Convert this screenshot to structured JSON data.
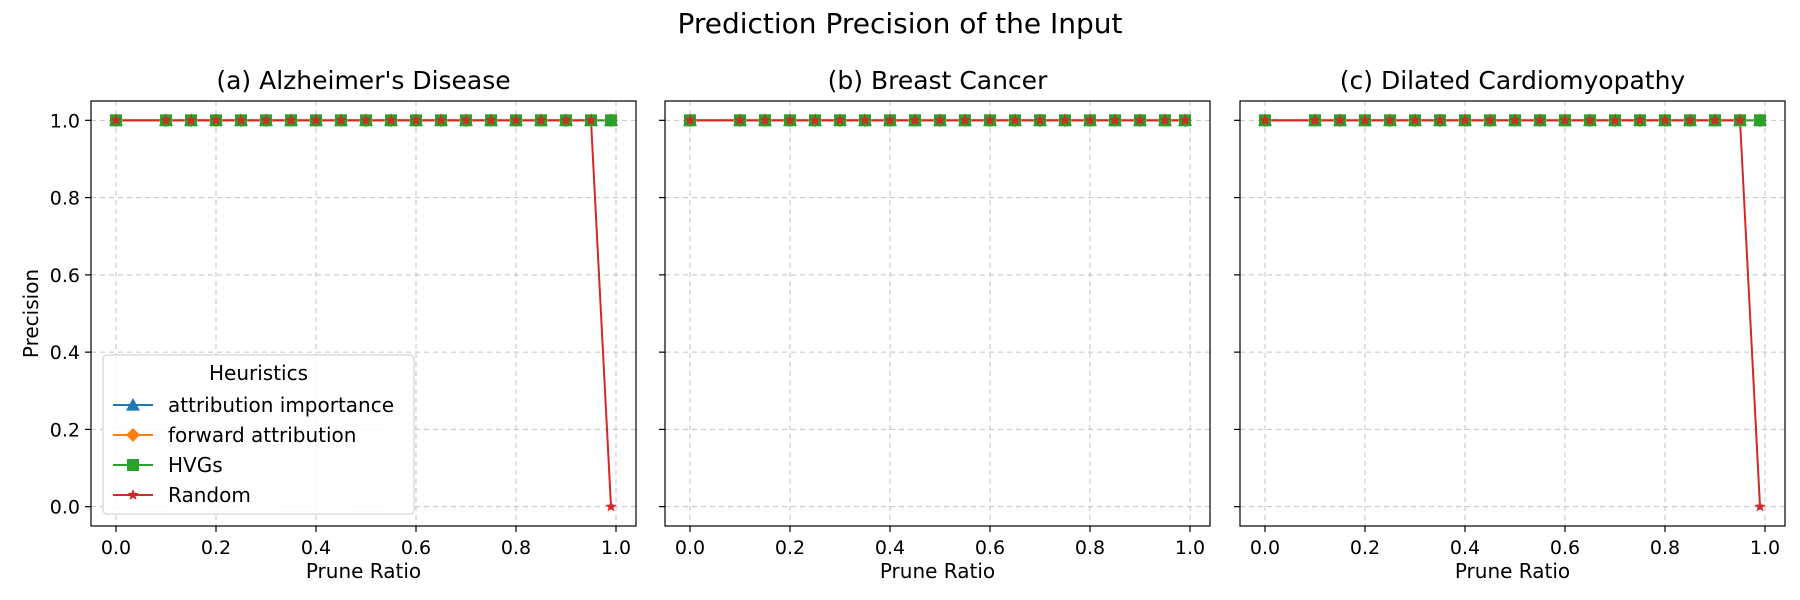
{
  "figure_title": "Prediction Precision of the Input",
  "colors": {
    "attribution importance": "#1f77b4",
    "forward attribution": "#ff7f0e",
    "HVGs": "#2ca02c",
    "Random": "#d62728"
  },
  "chart_data": [
    {
      "type": "line",
      "title": "(a) Alzheimer's Disease",
      "xlabel": "Prune Ratio",
      "ylabel": "Precision",
      "xlim": [
        -0.05,
        1.04
      ],
      "ylim": [
        -0.05,
        1.05
      ],
      "xticks": [
        "0.0",
        "0.2",
        "0.4",
        "0.6",
        "0.8",
        "1.0"
      ],
      "yticks": [
        "0.0",
        "0.2",
        "0.4",
        "0.6",
        "0.8",
        "1.0"
      ],
      "grid": true,
      "legend": {
        "title": "Heuristics",
        "placement": "lower-left"
      },
      "x": [
        0.0,
        0.1,
        0.15,
        0.2,
        0.25,
        0.3,
        0.35,
        0.4,
        0.45,
        0.5,
        0.55,
        0.6,
        0.65,
        0.7,
        0.75,
        0.8,
        0.85,
        0.9,
        0.95,
        0.99
      ],
      "series": [
        {
          "name": "attribution importance",
          "marker": "triangle",
          "values": [
            1,
            1,
            1,
            1,
            1,
            1,
            1,
            1,
            1,
            1,
            1,
            1,
            1,
            1,
            1,
            1,
            1,
            1,
            1,
            1
          ]
        },
        {
          "name": "forward attribution",
          "marker": "diamond",
          "values": [
            1,
            1,
            1,
            1,
            1,
            1,
            1,
            1,
            1,
            1,
            1,
            1,
            1,
            1,
            1,
            1,
            1,
            1,
            1,
            1
          ]
        },
        {
          "name": "HVGs",
          "marker": "square",
          "values": [
            1,
            1,
            1,
            1,
            1,
            1,
            1,
            1,
            1,
            1,
            1,
            1,
            1,
            1,
            1,
            1,
            1,
            1,
            1,
            1
          ]
        },
        {
          "name": "Random",
          "marker": "star",
          "values": [
            1,
            1,
            1,
            1,
            1,
            1,
            1,
            1,
            1,
            1,
            1,
            1,
            1,
            1,
            1,
            1,
            1,
            1,
            1,
            0
          ]
        }
      ]
    },
    {
      "type": "line",
      "title": "(b) Breast Cancer",
      "xlabel": "Prune Ratio",
      "ylabel": "",
      "xlim": [
        -0.05,
        1.04
      ],
      "ylim": [
        -0.05,
        1.05
      ],
      "xticks": [
        "0.0",
        "0.2",
        "0.4",
        "0.6",
        "0.8",
        "1.0"
      ],
      "yticks": [],
      "grid": true,
      "x": [
        0.0,
        0.1,
        0.15,
        0.2,
        0.25,
        0.3,
        0.35,
        0.4,
        0.45,
        0.5,
        0.55,
        0.6,
        0.65,
        0.7,
        0.75,
        0.8,
        0.85,
        0.9,
        0.95,
        0.99
      ],
      "series": [
        {
          "name": "attribution importance",
          "marker": "triangle",
          "values": [
            1,
            1,
            1,
            1,
            1,
            1,
            1,
            1,
            1,
            1,
            1,
            1,
            1,
            1,
            1,
            1,
            1,
            1,
            1,
            1
          ]
        },
        {
          "name": "forward attribution",
          "marker": "diamond",
          "values": [
            1,
            1,
            1,
            1,
            1,
            1,
            1,
            1,
            1,
            1,
            1,
            1,
            1,
            1,
            1,
            1,
            1,
            1,
            1,
            1
          ]
        },
        {
          "name": "HVGs",
          "marker": "square",
          "values": [
            1,
            1,
            1,
            1,
            1,
            1,
            1,
            1,
            1,
            1,
            1,
            1,
            1,
            1,
            1,
            1,
            1,
            1,
            1,
            1
          ]
        },
        {
          "name": "Random",
          "marker": "star",
          "values": [
            1,
            1,
            1,
            1,
            1,
            1,
            1,
            1,
            1,
            1,
            1,
            1,
            1,
            1,
            1,
            1,
            1,
            1,
            1,
            1
          ]
        }
      ]
    },
    {
      "type": "line",
      "title": "(c) Dilated Cardiomyopathy",
      "xlabel": "Prune Ratio",
      "ylabel": "",
      "xlim": [
        -0.05,
        1.04
      ],
      "ylim": [
        -0.05,
        1.05
      ],
      "xticks": [
        "0.0",
        "0.2",
        "0.4",
        "0.6",
        "0.8",
        "1.0"
      ],
      "yticks": [],
      "grid": true,
      "x": [
        0.0,
        0.1,
        0.15,
        0.2,
        0.25,
        0.3,
        0.35,
        0.4,
        0.45,
        0.5,
        0.55,
        0.6,
        0.65,
        0.7,
        0.75,
        0.8,
        0.85,
        0.9,
        0.95,
        0.99
      ],
      "series": [
        {
          "name": "attribution importance",
          "marker": "triangle",
          "values": [
            1,
            1,
            1,
            1,
            1,
            1,
            1,
            1,
            1,
            1,
            1,
            1,
            1,
            1,
            1,
            1,
            1,
            1,
            1,
            1
          ]
        },
        {
          "name": "forward attribution",
          "marker": "diamond",
          "values": [
            1,
            1,
            1,
            1,
            1,
            1,
            1,
            1,
            1,
            1,
            1,
            1,
            1,
            1,
            1,
            1,
            1,
            1,
            1,
            1
          ]
        },
        {
          "name": "HVGs",
          "marker": "square",
          "values": [
            1,
            1,
            1,
            1,
            1,
            1,
            1,
            1,
            1,
            1,
            1,
            1,
            1,
            1,
            1,
            1,
            1,
            1,
            1,
            1
          ]
        },
        {
          "name": "Random",
          "marker": "star",
          "values": [
            1,
            1,
            1,
            1,
            1,
            1,
            1,
            1,
            1,
            1,
            1,
            1,
            1,
            1,
            1,
            1,
            1,
            1,
            1,
            0
          ]
        }
      ]
    }
  ]
}
